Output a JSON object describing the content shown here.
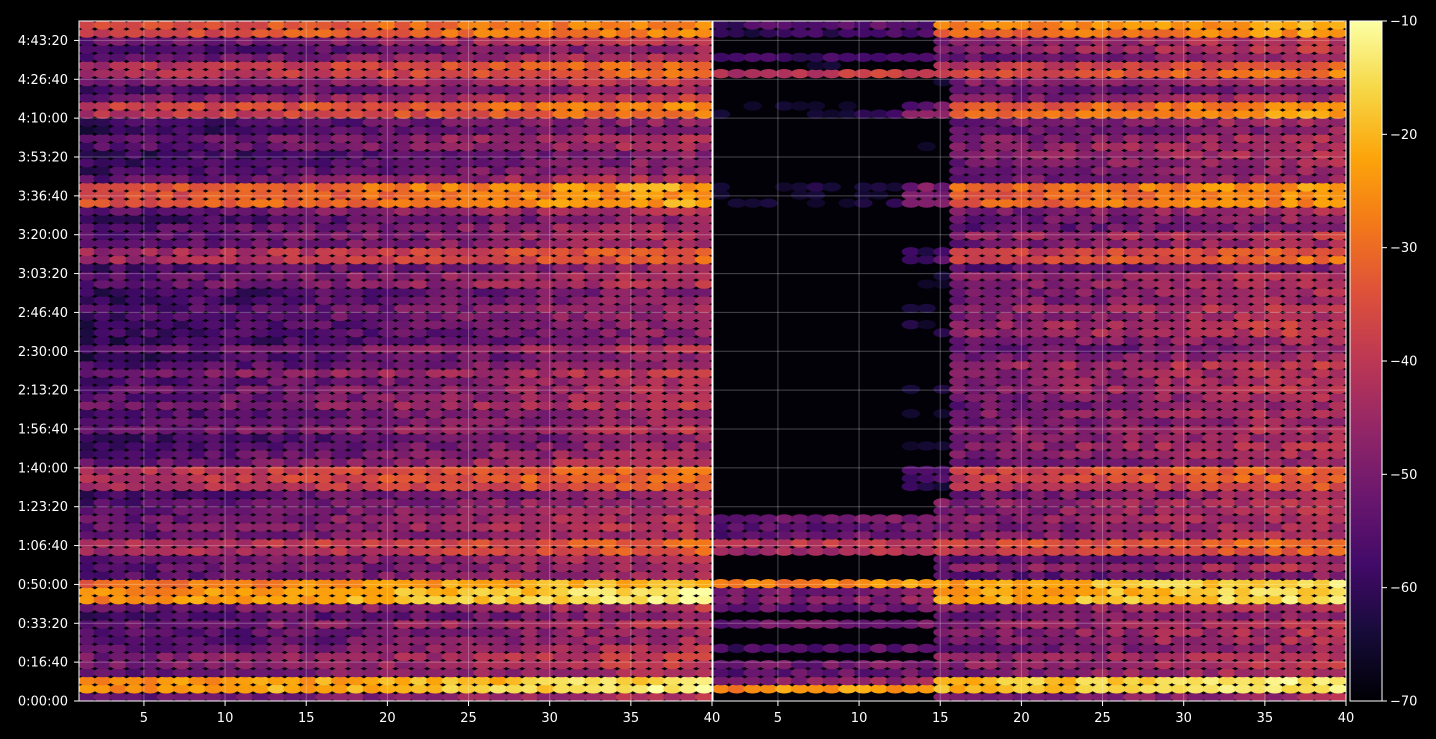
{
  "chart_data": {
    "type": "heatmap",
    "title": "",
    "xlabel": "",
    "ylabel": "",
    "panels": [
      {
        "name": "",
        "xlim": [
          1,
          40
        ],
        "x_ticks": [
          "5",
          "10",
          "15",
          "20",
          "25",
          "30",
          "35",
          "40"
        ],
        "x_tick_values": [
          5,
          10,
          15,
          20,
          25,
          30,
          35,
          40
        ]
      },
      {
        "name": "",
        "xlim": [
          1,
          40
        ],
        "x_ticks": [
          "5",
          "10",
          "15",
          "20",
          "25",
          "30",
          "35",
          "40"
        ],
        "x_tick_values": [
          5,
          10,
          15,
          20,
          25,
          30,
          35,
          40
        ]
      }
    ],
    "y_ticks": [
      "0:00:00",
      "0:16:40",
      "0:33:20",
      "0:50:00",
      "1:06:40",
      "1:23:20",
      "1:40:00",
      "1:56:40",
      "2:13:20",
      "2:30:00",
      "2:46:40",
      "3:03:20",
      "3:20:00",
      "3:36:40",
      "3:53:20",
      "4:10:00",
      "4:26:40",
      "4:43:20"
    ],
    "y_tick_seconds": [
      0,
      1000,
      2000,
      3000,
      4000,
      5000,
      6000,
      7000,
      8000,
      9000,
      10000,
      11000,
      12000,
      13000,
      14000,
      15000,
      16000,
      17000
    ],
    "ylim_seconds": [
      0,
      17500
    ],
    "grid": true,
    "colormap": "inferno",
    "colorbar": {
      "range": [
        -70,
        -10
      ],
      "ticks": [
        "−10",
        "−20",
        "−30",
        "−40",
        "−50",
        "−60",
        "−70"
      ],
      "tick_values": [
        -10,
        -20,
        -30,
        -40,
        -50,
        -60,
        -70
      ]
    },
    "strong_rows": [
      {
        "y_seconds": 400,
        "level": -18,
        "slope": 0.3
      },
      {
        "y_seconds": 1000,
        "level": -44,
        "slope": 0.5
      },
      {
        "y_seconds": 2800,
        "level": -22,
        "slope": 0.25
      },
      {
        "y_seconds": 4000,
        "level": -36,
        "slope": 0.6
      },
      {
        "y_seconds": 5700,
        "level": -38,
        "slope": 0.5
      },
      {
        "y_seconds": 11400,
        "level": -38,
        "slope": 0.6
      },
      {
        "y_seconds": 13050,
        "level": -30,
        "slope": 0.7
      },
      {
        "y_seconds": 15150,
        "level": -32,
        "slope": 0.5
      },
      {
        "y_seconds": 16300,
        "level": -38,
        "slope": 0.4
      },
      {
        "y_seconds": 17400,
        "level": -30,
        "slope": 0.5
      }
    ]
  }
}
